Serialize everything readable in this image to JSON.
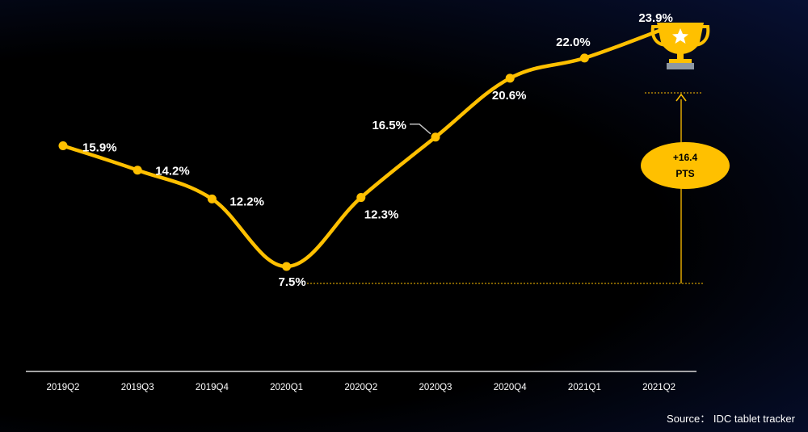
{
  "chart_data": {
    "type": "line",
    "categories": [
      "2019Q2",
      "2019Q3",
      "2019Q4",
      "2020Q1",
      "2020Q2",
      "2020Q3",
      "2020Q4",
      "2021Q1",
      "2021Q2"
    ],
    "values": [
      15.9,
      14.2,
      12.2,
      7.5,
      12.3,
      16.5,
      20.6,
      22.0,
      23.9
    ],
    "value_labels": [
      "15.9%",
      "14.2%",
      "12.2%",
      "7.5%",
      "12.3%",
      "16.5%",
      "20.6%",
      "22.0%",
      "23.9%"
    ],
    "ylim": [
      0,
      25
    ],
    "grid": false,
    "line_color": "#FFC000",
    "annotation": {
      "text_line1": "+16.4",
      "text_line2": "PTS",
      "from_value": 7.5,
      "to_value": 23.9,
      "color": "#FFC000"
    },
    "trophy_icon": "trophy-icon"
  },
  "source": "Source： IDC tablet tracker"
}
